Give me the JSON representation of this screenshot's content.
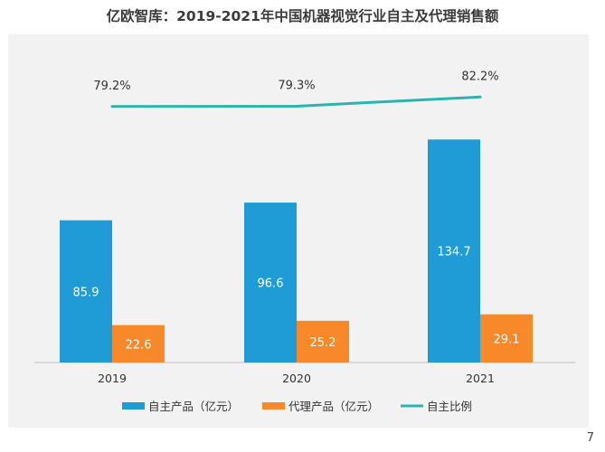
{
  "title": "亿欧智库：2019-2021年中国机器视觉行业自主及代理销售额",
  "page_number": "7",
  "chart_data": {
    "type": "bar",
    "categories": [
      "2019",
      "2020",
      "2021"
    ],
    "series": [
      {
        "name": "自主产品（亿元）",
        "kind": "bar",
        "color": "#1f9cd5",
        "values": [
          85.9,
          96.6,
          134.7
        ],
        "labels": [
          "85.9",
          "96.6",
          "134.7"
        ]
      },
      {
        "name": "代理产品（亿元）",
        "kind": "bar",
        "color": "#f7892a",
        "values": [
          22.6,
          25.2,
          29.1
        ],
        "labels": [
          "22.6",
          "25.2",
          "29.1"
        ]
      },
      {
        "name": "自主比例",
        "kind": "line",
        "color": "#27b5b0",
        "values": [
          79.2,
          79.3,
          82.2
        ],
        "labels": [
          "79.2%",
          "79.3%",
          "82.2%"
        ]
      }
    ],
    "ylim": [
      0,
      160
    ],
    "line_ylim": [
      0,
      100
    ],
    "grid": false,
    "legend_position": "bottom"
  }
}
